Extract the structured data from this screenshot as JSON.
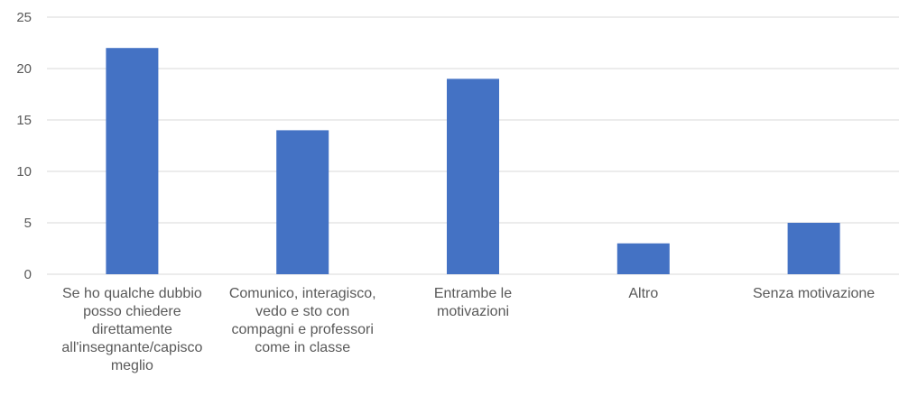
{
  "chart_data": {
    "type": "bar",
    "categories": [
      "Se ho qualche dubbio\nposso chiedere\ndirettamente\nall'insegnante/capisco\nmeglio",
      "Comunico, interagisco,\nvedo e sto con\ncompagni e professori\ncome in classe",
      "Entrambe le\nmotivazioni",
      "Altro",
      "Senza motivazione"
    ],
    "values": [
      22,
      14,
      19,
      3,
      5
    ],
    "ylim": [
      0,
      25
    ],
    "yticks": [
      0,
      5,
      10,
      15,
      20,
      25
    ],
    "title": "",
    "xlabel": "",
    "ylabel": "",
    "grid": true,
    "legend": "none",
    "bar_color": "#4472C4",
    "grid_color": "#D9D9D9",
    "text_color": "#595959"
  }
}
